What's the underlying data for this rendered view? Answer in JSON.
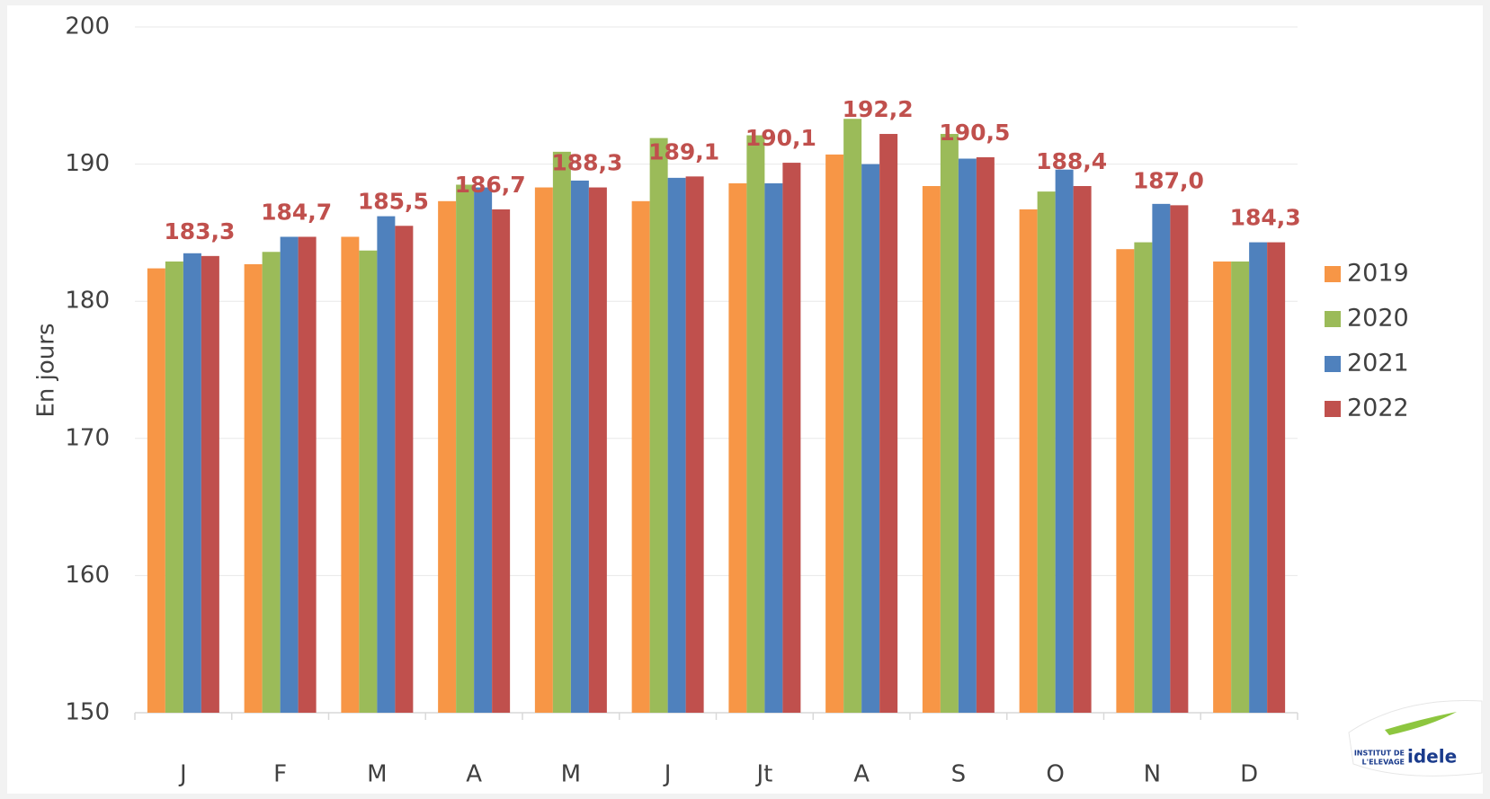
{
  "chart_data": {
    "type": "bar",
    "y_label": "En jours",
    "categories": [
      "J",
      "F",
      "M",
      "A",
      "M",
      "J",
      "Jt",
      "A",
      "S",
      "O",
      "N",
      "D"
    ],
    "series": [
      {
        "name": "2019",
        "color": "#f79646",
        "values": [
          182.4,
          182.7,
          184.7,
          187.3,
          188.3,
          187.3,
          188.6,
          190.7,
          188.4,
          186.7,
          183.8,
          182.9
        ]
      },
      {
        "name": "2020",
        "color": "#9bbb59",
        "values": [
          182.9,
          183.6,
          183.7,
          188.5,
          190.9,
          191.9,
          192.1,
          193.3,
          192.2,
          188.0,
          184.3,
          182.9
        ]
      },
      {
        "name": "2021",
        "color": "#4f81bd",
        "values": [
          183.5,
          184.7,
          186.2,
          188.3,
          188.8,
          189.0,
          188.6,
          190.0,
          190.4,
          189.6,
          187.1,
          184.3
        ]
      },
      {
        "name": "2022",
        "color": "#c0504d",
        "values": [
          183.3,
          184.7,
          185.5,
          186.7,
          188.3,
          189.1,
          190.1,
          192.2,
          190.5,
          188.4,
          187.0,
          184.3
        ],
        "value_labels": [
          "183,3",
          "184,7",
          "185,5",
          "186,7",
          "188,3",
          "189,1",
          "190,1",
          "192,2",
          "190,5",
          "188,4",
          "187,0",
          "184,3"
        ]
      }
    ],
    "ylim": [
      150,
      200
    ],
    "yticks": [
      150,
      160,
      170,
      180,
      190,
      200
    ],
    "grid": true,
    "legend": "right"
  },
  "logo": {
    "line1": "INSTITUT DE",
    "line2": "L'ELEVAGE",
    "brand": "idele"
  }
}
